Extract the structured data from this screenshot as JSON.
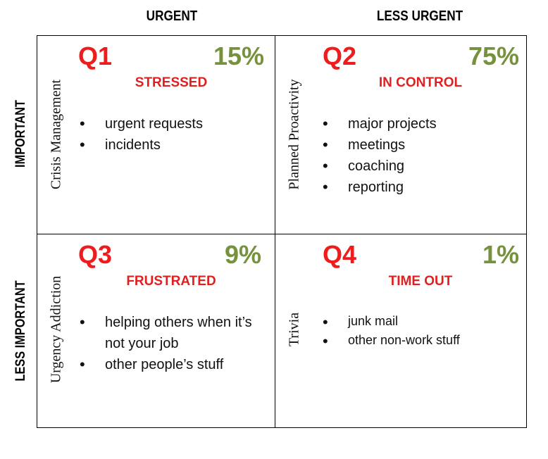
{
  "headers": {
    "col_left": "URGENT",
    "col_right": "LESS URGENT",
    "row_top": "IMPORTANT",
    "row_bottom": "LESS IMPORTANT"
  },
  "quadrants": [
    {
      "id": "Q1",
      "percent": "15%",
      "mood": "STRESSED",
      "side_label": "Crisis Management",
      "items": [
        "urgent requests",
        "incidents"
      ]
    },
    {
      "id": "Q2",
      "percent": "75%",
      "mood": "IN CONTROL",
      "side_label": "Planned Proactivity",
      "items": [
        "major projects",
        "meetings",
        "coaching",
        "reporting"
      ]
    },
    {
      "id": "Q3",
      "percent": "9%",
      "mood": "FRUSTRATED",
      "side_label": "Urgency Addiction",
      "items": [
        "helping others when it’s not your job",
        "other people’s stuff"
      ]
    },
    {
      "id": "Q4",
      "percent": "1%",
      "mood": "TIME OUT",
      "side_label": "Trivia",
      "items": [
        "junk mail",
        "other non-work stuff"
      ]
    }
  ],
  "colors": {
    "quadrant_id": "#ee1c1c",
    "percent": "#76923c",
    "mood": "#e02020"
  }
}
